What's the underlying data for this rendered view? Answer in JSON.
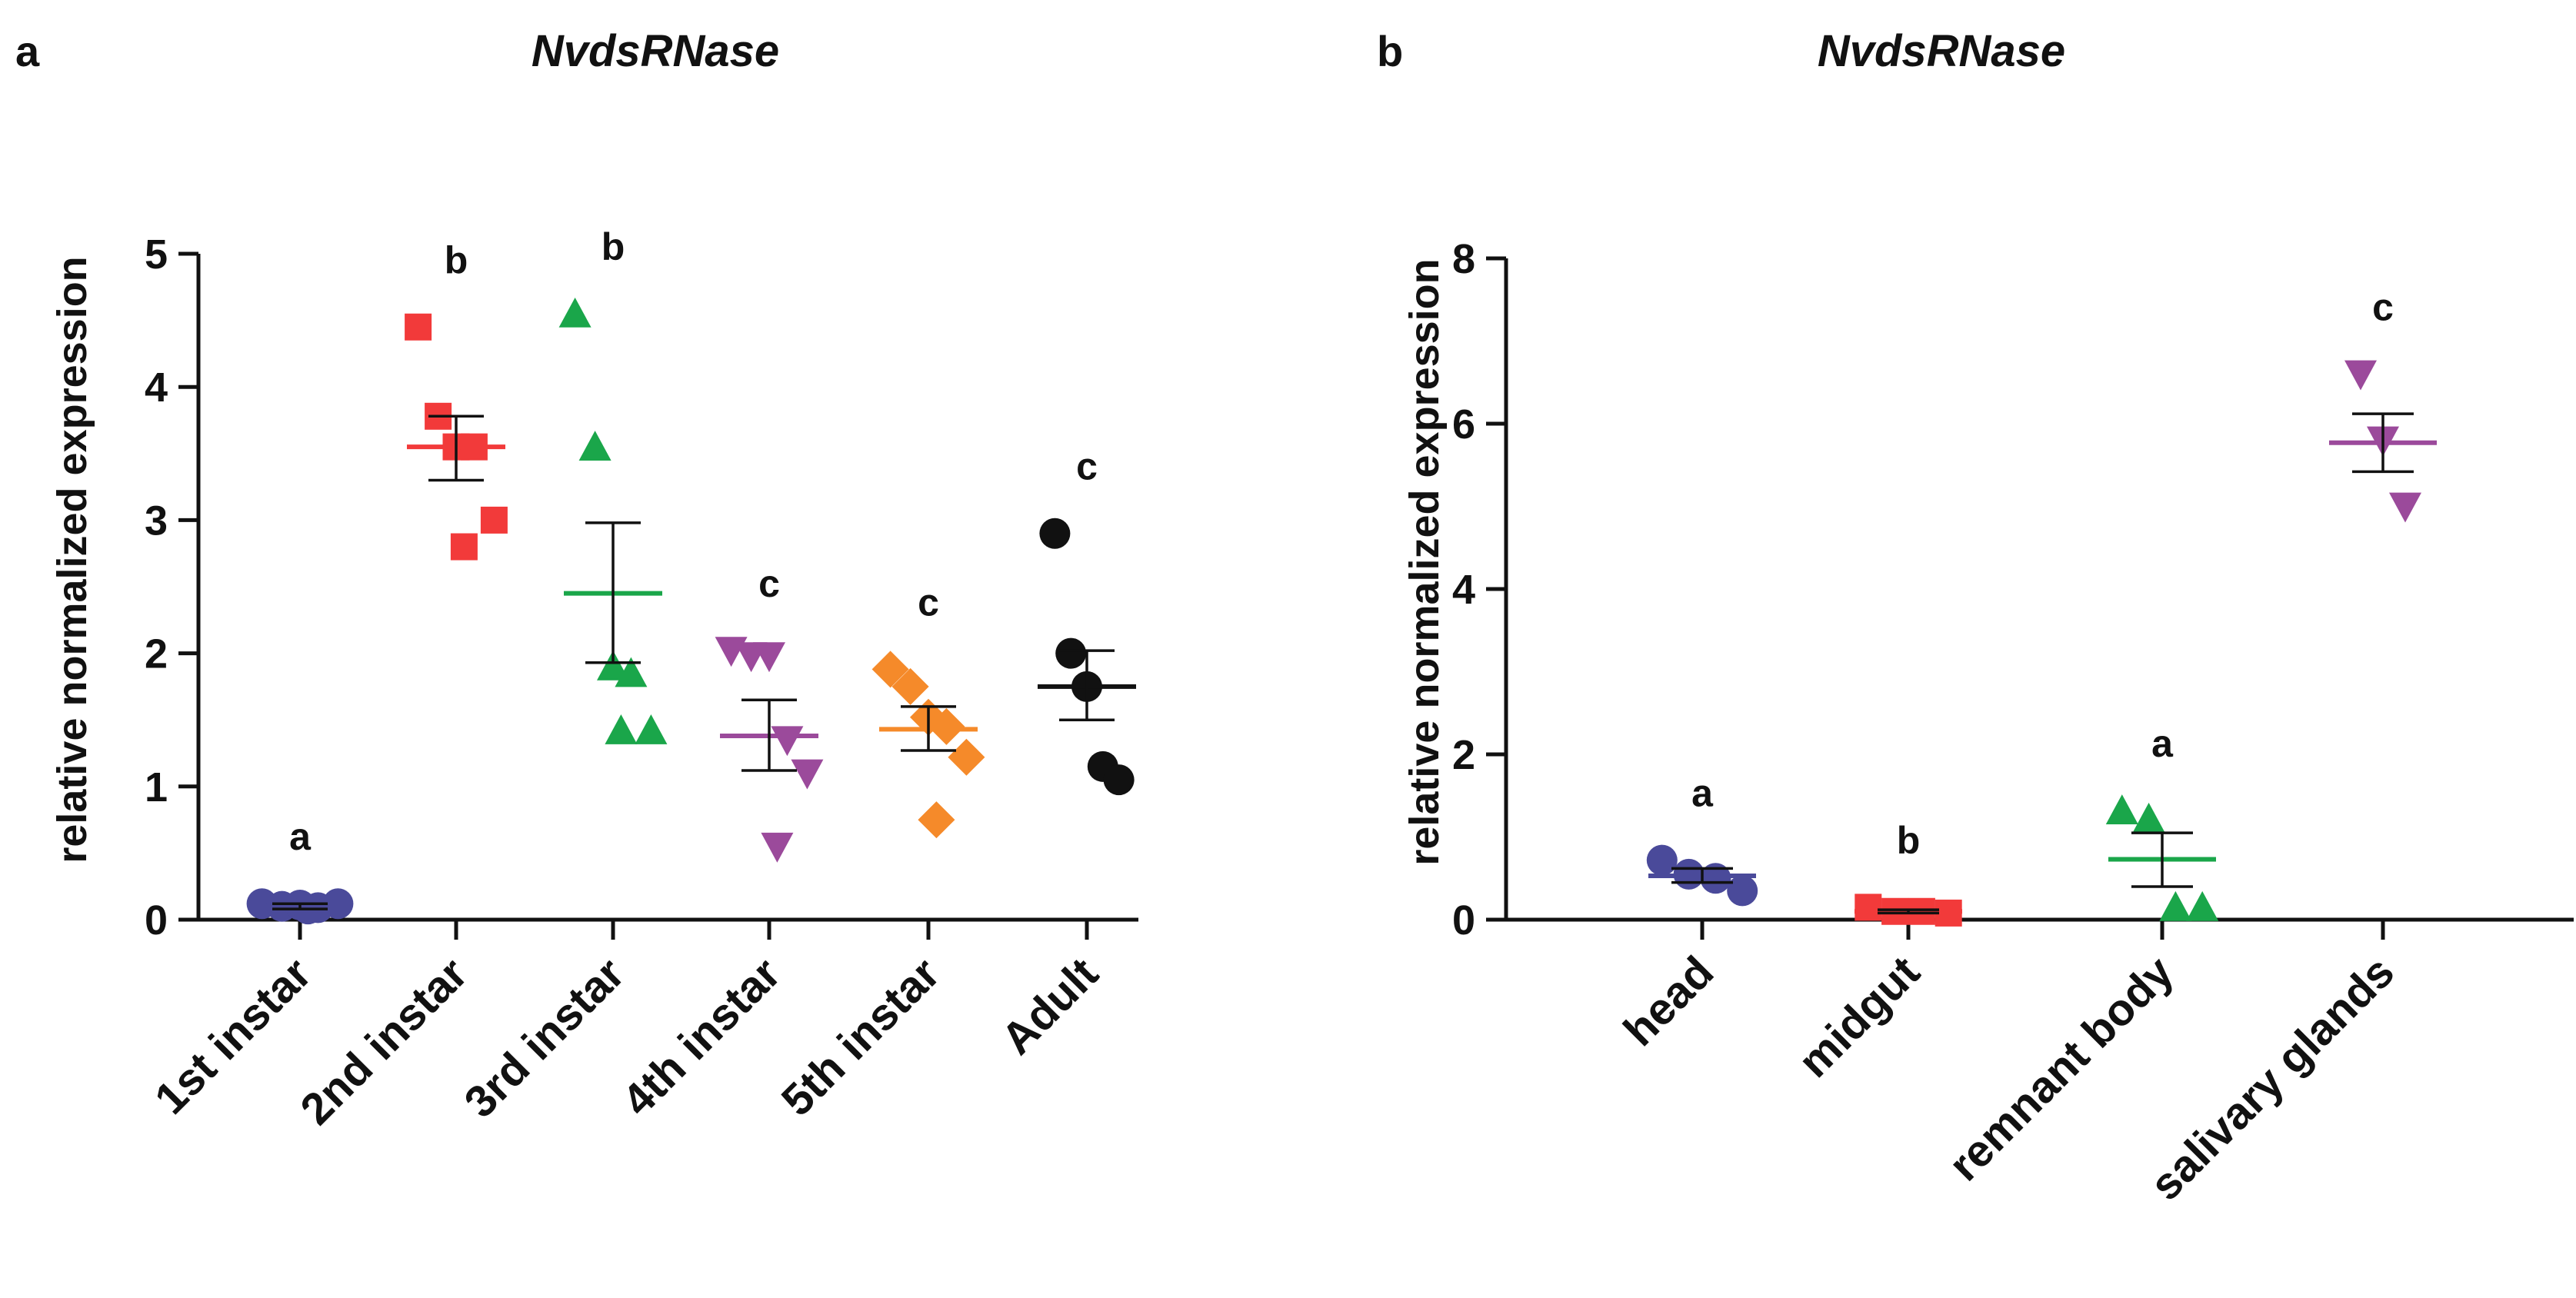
{
  "chart_data": [
    {
      "panel": "a",
      "type": "scatter",
      "title": "NvdsRNase",
      "xlabel": "",
      "ylabel": "relative normalized expression",
      "ylim": [
        0,
        5
      ],
      "yticks": [
        0,
        1,
        2,
        3,
        4,
        5
      ],
      "categories": [
        "1st instar",
        "2nd instar",
        "3rd instar",
        "4th instar",
        "5th instar",
        "Adult"
      ],
      "series": [
        {
          "name": "1st instar",
          "marker": "circle",
          "color": "#4a4a9a",
          "values": [
            0.12,
            0.1,
            0.11,
            0.09,
            0.12,
            0.08
          ],
          "mean": 0.1,
          "sem_low": 0.08,
          "sem_high": 0.12,
          "group": "a"
        },
        {
          "name": "2nd instar",
          "marker": "square",
          "color": "#f23a3a",
          "values": [
            4.45,
            3.78,
            3.55,
            3.55,
            3.0,
            2.8
          ],
          "mean": 3.55,
          "sem_low": 3.3,
          "sem_high": 3.78,
          "group": "b"
        },
        {
          "name": "3rd instar",
          "marker": "triangle-up",
          "color": "#1aa64a",
          "values": [
            4.55,
            3.55,
            1.9,
            1.85,
            1.42,
            1.42
          ],
          "mean": 2.45,
          "sem_low": 1.93,
          "sem_high": 2.98,
          "group": "b"
        },
        {
          "name": "4th instar",
          "marker": "triangle-down",
          "color": "#9b4a9b",
          "values": [
            2.02,
            1.98,
            1.98,
            1.35,
            1.1,
            0.55
          ],
          "mean": 1.38,
          "sem_low": 1.12,
          "sem_high": 1.65,
          "group": "c"
        },
        {
          "name": "5th instar",
          "marker": "diamond",
          "color": "#f58a2a",
          "values": [
            1.88,
            1.75,
            1.52,
            1.45,
            1.22,
            0.75
          ],
          "mean": 1.43,
          "sem_low": 1.27,
          "sem_high": 1.6,
          "group": "c"
        },
        {
          "name": "Adult",
          "marker": "circle",
          "color": "#111111",
          "values": [
            2.9,
            2.0,
            1.75,
            1.15,
            1.05
          ],
          "mean": 1.75,
          "sem_low": 1.5,
          "sem_high": 2.02,
          "group": "c"
        }
      ]
    },
    {
      "panel": "b",
      "type": "scatter",
      "title": "NvdsRNase",
      "xlabel": "",
      "ylabel": "relative normalized expression",
      "ylim": [
        0,
        8
      ],
      "yticks": [
        0,
        2,
        4,
        6,
        8
      ],
      "categories": [
        "head",
        "midgut",
        "remnant body",
        "salivary glands"
      ],
      "series": [
        {
          "name": "head",
          "marker": "circle",
          "color": "#4a4a9a",
          "values": [
            0.72,
            0.55,
            0.5,
            0.35
          ],
          "mean": 0.53,
          "sem_low": 0.45,
          "sem_high": 0.62,
          "group": "a"
        },
        {
          "name": "midgut",
          "marker": "square",
          "color": "#f23a3a",
          "values": [
            0.15,
            0.1,
            0.1,
            0.08
          ],
          "mean": 0.1,
          "sem_low": 0.08,
          "sem_high": 0.12,
          "group": "b"
        },
        {
          "name": "remnant body",
          "marker": "triangle-up",
          "color": "#1aa64a",
          "values": [
            1.32,
            1.22,
            0.15,
            0.15
          ],
          "mean": 0.73,
          "sem_low": 0.4,
          "sem_high": 1.05,
          "group": "a"
        },
        {
          "name": "salivary glands",
          "marker": "triangle-down",
          "color": "#9b4a9b",
          "values": [
            6.6,
            5.8,
            5.0
          ],
          "mean": 5.77,
          "sem_low": 5.42,
          "sem_high": 6.12,
          "group": "c"
        }
      ]
    }
  ]
}
